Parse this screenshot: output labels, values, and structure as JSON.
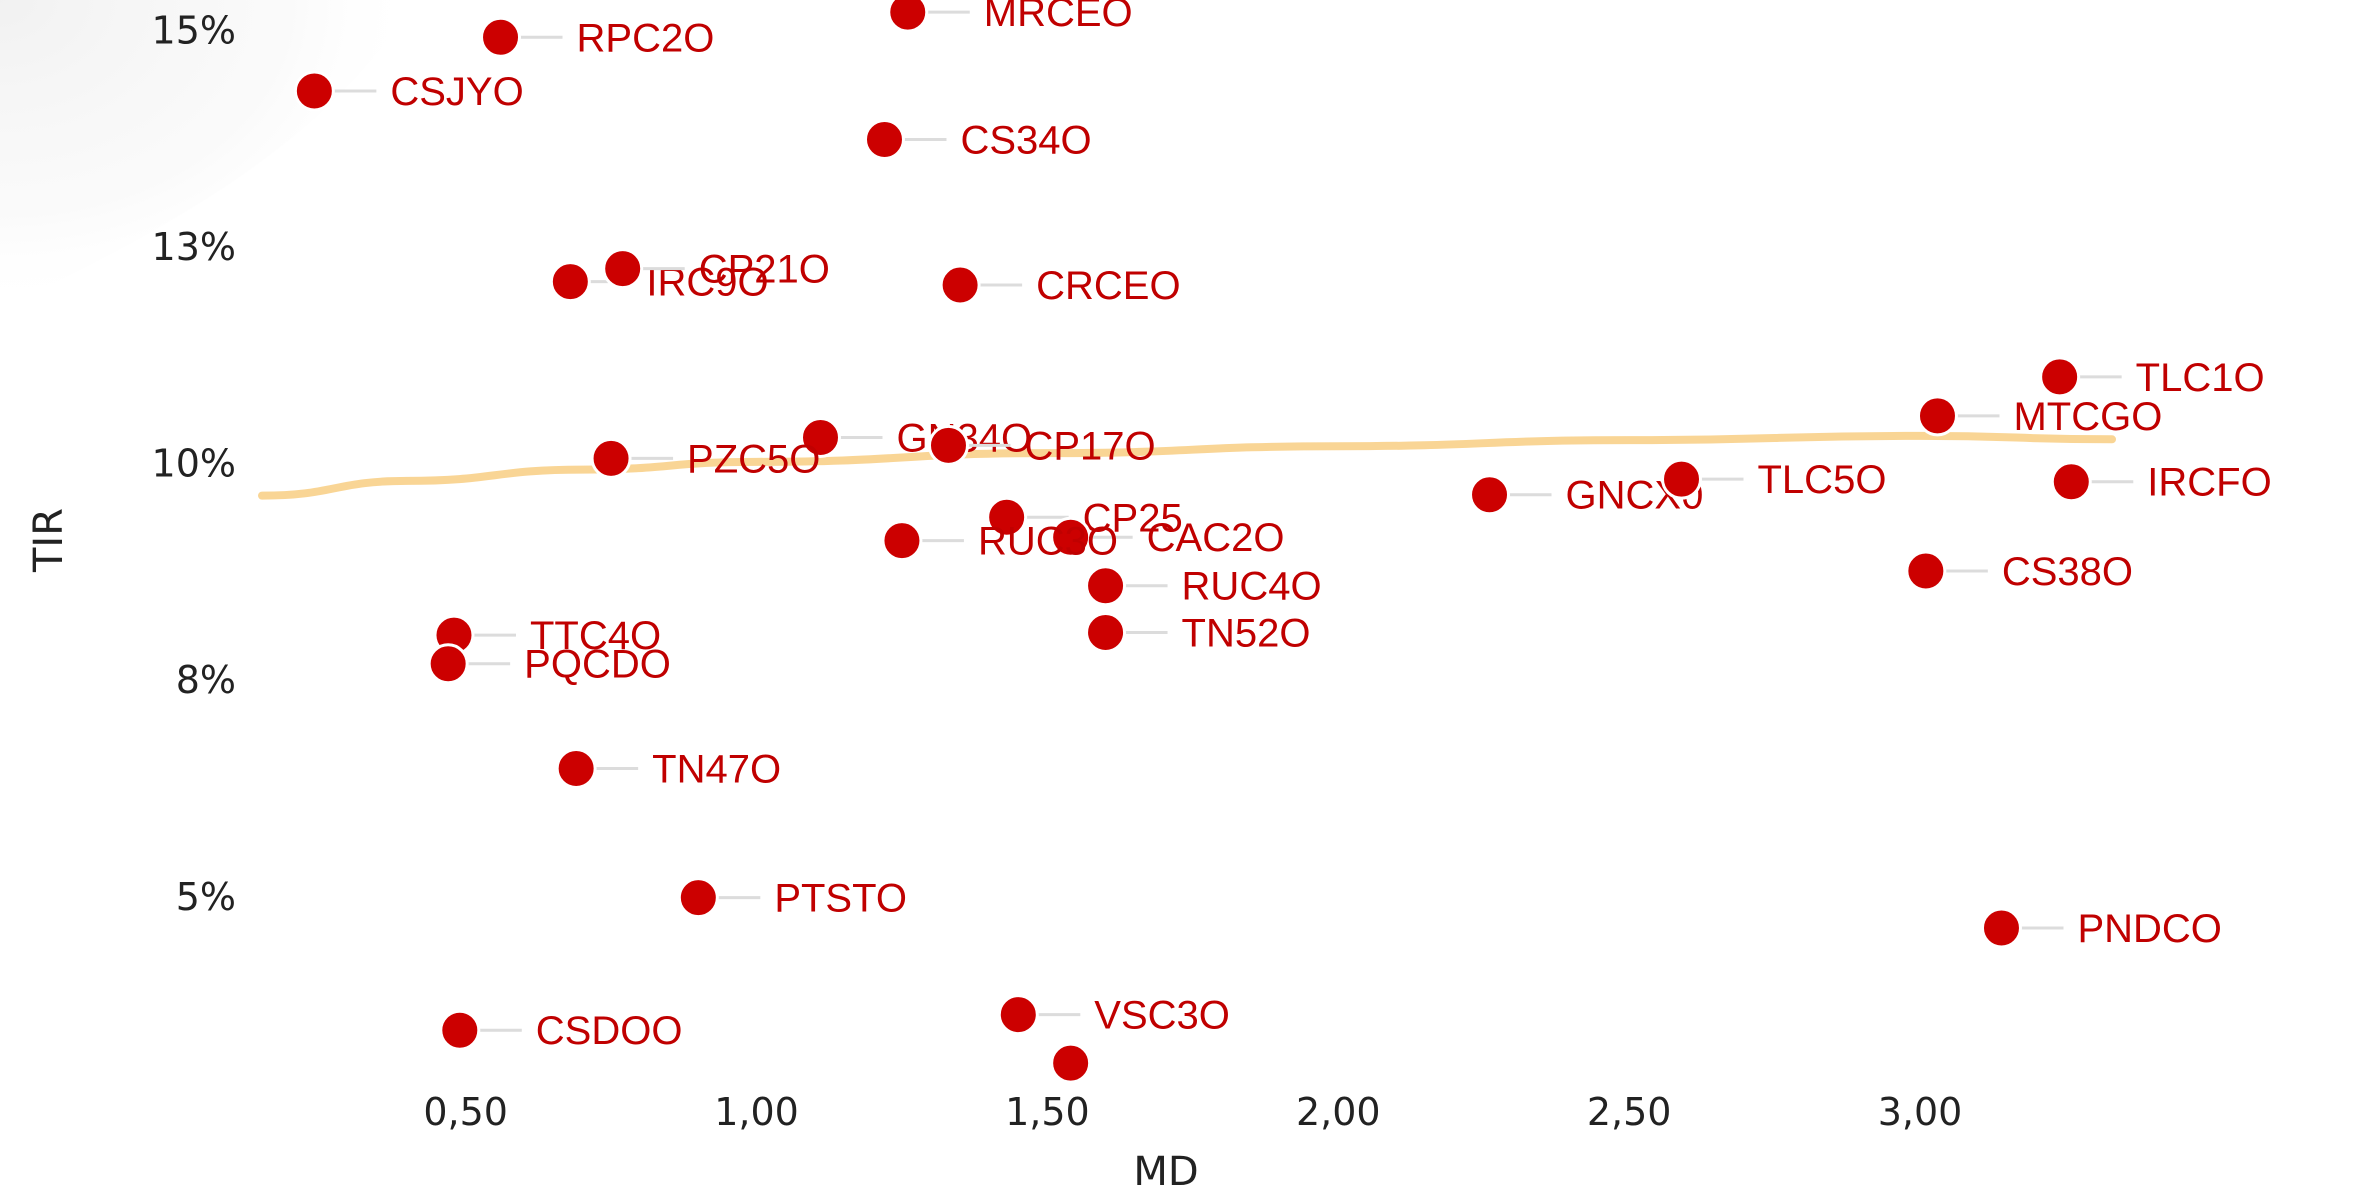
{
  "chart_data": {
    "type": "scatter",
    "xlabel": "MD",
    "ylabel": "TIR",
    "xlim": [
      0.15,
      3.55
    ],
    "ylim": [
      3.07,
      15.35
    ],
    "x_ticks": [
      0.5,
      1.0,
      1.5,
      2.0,
      2.5,
      3.0
    ],
    "x_tick_labels": [
      "0,50",
      "1,00",
      "1,50",
      "2,00",
      "2,50",
      "3,00"
    ],
    "y_ticks": [
      5,
      7.5,
      10,
      12.5,
      15
    ],
    "y_tick_labels": [
      "5%",
      "8%",
      "10%",
      "13%",
      "15%"
    ],
    "grid": false,
    "legend": "none",
    "point_color": "#cc0000",
    "label_color": "#c00000",
    "trend_color": "#f8d08a",
    "points": [
      {
        "label": "MRCEO",
        "x": 1.26,
        "y": 15.21
      },
      {
        "label": "RPC2O",
        "x": 0.56,
        "y": 14.92
      },
      {
        "label": "CSJYO",
        "x": 0.24,
        "y": 14.3
      },
      {
        "label": "CS34O",
        "x": 1.22,
        "y": 13.74
      },
      {
        "label": "IRC9O",
        "x": 0.68,
        "y": 12.1
      },
      {
        "label": "CP21O",
        "x": 0.77,
        "y": 12.25
      },
      {
        "label": "CRCEO",
        "x": 1.35,
        "y": 12.06
      },
      {
        "label": "TLC1O",
        "x": 3.24,
        "y": 11.0
      },
      {
        "label": "MTCGO",
        "x": 3.03,
        "y": 10.55
      },
      {
        "label": "GN34O",
        "x": 1.11,
        "y": 10.3
      },
      {
        "label": "CP17O",
        "x": 1.33,
        "y": 10.21
      },
      {
        "label": "PZC5O",
        "x": 0.75,
        "y": 10.06
      },
      {
        "label": "GNCX0",
        "x": 2.26,
        "y": 9.64
      },
      {
        "label": "TLC5O",
        "x": 2.59,
        "y": 9.82
      },
      {
        "label": "IRCFO",
        "x": 3.26,
        "y": 9.79
      },
      {
        "label": "CP25",
        "x": 1.43,
        "y": 9.38
      },
      {
        "label": "CAC2O",
        "x": 1.54,
        "y": 9.15
      },
      {
        "label": "RUC3O",
        "x": 1.25,
        "y": 9.11
      },
      {
        "label": "RUC4O",
        "x": 1.6,
        "y": 8.59
      },
      {
        "label": "CS38O",
        "x": 3.01,
        "y": 8.76
      },
      {
        "label": "TN52O",
        "x": 1.6,
        "y": 8.05
      },
      {
        "label": "TTC4O",
        "x": 0.48,
        "y": 8.02
      },
      {
        "label": "PQCDO",
        "x": 0.47,
        "y": 7.69
      },
      {
        "label": "TN47O",
        "x": 0.69,
        "y": 6.48
      },
      {
        "label": "PTSTO",
        "x": 0.9,
        "y": 4.99
      },
      {
        "label": "PNDCO",
        "x": 3.14,
        "y": 4.64
      },
      {
        "label": "VSC3O",
        "x": 1.45,
        "y": 3.64
      },
      {
        "label": "CSDOO",
        "x": 0.49,
        "y": 3.46
      },
      {
        "label": "",
        "x": 1.54,
        "y": 3.08
      }
    ],
    "trend": {
      "x": [
        0.15,
        0.4,
        0.7,
        1.0,
        1.5,
        2.0,
        2.5,
        3.0,
        3.33
      ],
      "y": [
        9.63,
        9.8,
        9.93,
        10.02,
        10.12,
        10.2,
        10.27,
        10.32,
        10.28
      ]
    }
  }
}
